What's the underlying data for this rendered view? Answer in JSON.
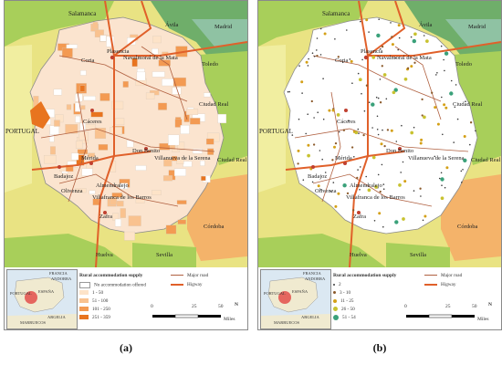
{
  "panels": {
    "a": {
      "caption": "(a)",
      "legend_title": "Rural accommodation supply",
      "legend_items": [
        "1 - 50",
        "51 - 100",
        "101 - 250",
        "251 - 359"
      ],
      "legend_no_supply": "No accommodation offered",
      "legend_colors": [
        "#fde3c8",
        "#f9c28f",
        "#f39a52",
        "#e8741f"
      ]
    },
    "b": {
      "caption": "(b)",
      "legend_title": "Rural accommodation supply",
      "legend_items": [
        "2",
        "3 - 10",
        "11 - 25",
        "26 - 50",
        "51 - 54"
      ],
      "legend_colors": [
        "#3a3a3a",
        "#8b5a2b",
        "#d4a017",
        "#c8c230",
        "#3aa17a"
      ]
    }
  },
  "places": {
    "salamanca": "Salamanca",
    "avila": "Ávila",
    "madrid": "Madrid",
    "plasencia": "Plasencia",
    "coria": "Coria",
    "navalmoral": "Navalmoral de la Mata",
    "toledo": "Toledo",
    "ciudad_real": "Ciudad Real",
    "portugal": "PORTUGAL",
    "caceres": "Cáceres",
    "don_benito": "Don Benito",
    "villanueva": "Villanueva de la Serena",
    "merida": "Mérida",
    "badajoz": "Badajoz",
    "almendralejo": "Almendralejo",
    "olivenza": "Olivenza",
    "villafranca": "Villafranca de los Barros",
    "zafra": "Zafra",
    "cordoba": "Córdoba",
    "huelva": "Huelva",
    "sevilla": "Sevilla"
  },
  "inset": {
    "francia": "FRANCIA",
    "andorra": "ANDORRA",
    "portugal": "PORTUGAL",
    "espana": "ESPAÑA",
    "argelia": "ARGELIA",
    "marruecos": "MARRUECOS"
  },
  "road_legend": {
    "major_road": "Major road",
    "highway": "Higway"
  },
  "scale": {
    "zero": "0",
    "mid": "25",
    "max": "50",
    "unit": "Miles"
  },
  "north": "N",
  "colors": {
    "highway": "#e0602a",
    "major_road": "#b06040",
    "region_green_dark": "#6fae6a",
    "region_green": "#a8cf5a",
    "region_yellow": "#e8e36a",
    "region_orange": "#f4b36a",
    "region_teal": "#8fc2a3"
  }
}
